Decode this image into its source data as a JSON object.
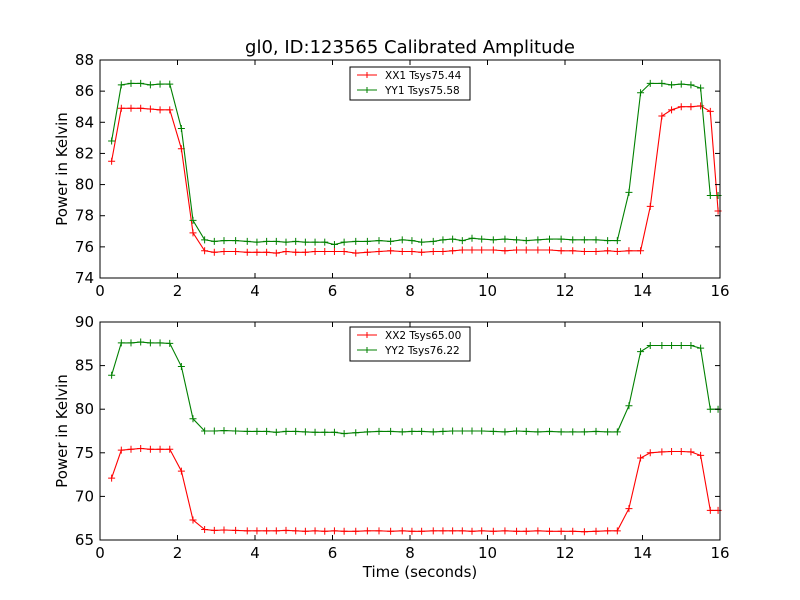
{
  "title": "gl0, ID:123565 Calibrated Amplitude",
  "chart_data": [
    {
      "type": "line",
      "ylabel": "Power in Kelvin",
      "xlabel": "",
      "xlim": [
        0,
        16
      ],
      "ylim": [
        74,
        88
      ],
      "xticks": [
        0,
        2,
        4,
        6,
        8,
        10,
        12,
        14,
        16
      ],
      "yticks": [
        74,
        76,
        78,
        80,
        82,
        84,
        86,
        88
      ],
      "xtick_labels": [
        "0",
        "2",
        "4",
        "6",
        "8",
        "10",
        "12",
        "14",
        "16"
      ],
      "ytick_labels": [
        "74",
        "76",
        "78",
        "80",
        "82",
        "84",
        "86",
        "88"
      ],
      "grid": false,
      "legend": "top-center",
      "x": [
        0.3,
        0.55,
        0.8,
        1.05,
        1.3,
        1.55,
        1.8,
        2.1,
        2.4,
        2.7,
        2.95,
        3.2,
        3.5,
        3.8,
        4.05,
        4.3,
        4.55,
        4.8,
        5.05,
        5.3,
        5.55,
        5.8,
        6.05,
        6.3,
        6.6,
        6.9,
        7.2,
        7.5,
        7.8,
        8.05,
        8.3,
        8.6,
        8.85,
        9.1,
        9.35,
        9.6,
        9.85,
        10.15,
        10.45,
        10.75,
        11.0,
        11.3,
        11.6,
        11.9,
        12.2,
        12.5,
        12.8,
        13.1,
        13.35,
        13.65,
        13.95,
        14.2,
        14.5,
        14.75,
        15.0,
        15.25,
        15.5,
        15.75,
        15.95
      ],
      "series": [
        {
          "name": "XX1 Tsys75.44",
          "color": "#ff0000",
          "values": [
            81.5,
            84.9,
            84.9,
            84.9,
            84.85,
            84.8,
            84.8,
            82.3,
            76.9,
            75.75,
            75.65,
            75.7,
            75.7,
            75.65,
            75.65,
            75.65,
            75.6,
            75.7,
            75.65,
            75.65,
            75.7,
            75.7,
            75.7,
            75.7,
            75.6,
            75.65,
            75.7,
            75.75,
            75.7,
            75.7,
            75.65,
            75.7,
            75.7,
            75.75,
            75.8,
            75.8,
            75.8,
            75.8,
            75.75,
            75.8,
            75.8,
            75.8,
            75.8,
            75.75,
            75.75,
            75.7,
            75.7,
            75.75,
            75.7,
            75.75,
            75.75,
            78.6,
            84.4,
            84.8,
            85.0,
            85.0,
            85.05,
            84.7,
            78.3
          ]
        },
        {
          "name": "YY1 Tsys75.58",
          "color": "#008000",
          "values": [
            82.8,
            86.4,
            86.5,
            86.5,
            86.4,
            86.45,
            86.45,
            83.6,
            77.7,
            76.45,
            76.35,
            76.4,
            76.4,
            76.35,
            76.3,
            76.35,
            76.35,
            76.3,
            76.35,
            76.3,
            76.3,
            76.3,
            76.15,
            76.3,
            76.35,
            76.35,
            76.4,
            76.35,
            76.45,
            76.4,
            76.3,
            76.35,
            76.45,
            76.5,
            76.4,
            76.55,
            76.5,
            76.45,
            76.5,
            76.45,
            76.4,
            76.45,
            76.5,
            76.5,
            76.45,
            76.45,
            76.45,
            76.4,
            76.4,
            79.5,
            85.9,
            86.5,
            86.5,
            86.4,
            86.45,
            86.4,
            86.2,
            79.3,
            79.3
          ]
        }
      ]
    },
    {
      "type": "line",
      "ylabel": "Power in Kelvin",
      "xlabel": "Time (seconds)",
      "xlim": [
        0,
        16
      ],
      "ylim": [
        65,
        90
      ],
      "xticks": [
        0,
        2,
        4,
        6,
        8,
        10,
        12,
        14,
        16
      ],
      "yticks": [
        65,
        70,
        75,
        80,
        85,
        90
      ],
      "xtick_labels": [
        "0",
        "2",
        "4",
        "6",
        "8",
        "10",
        "12",
        "14",
        "16"
      ],
      "ytick_labels": [
        "65",
        "70",
        "75",
        "80",
        "85",
        "90"
      ],
      "grid": false,
      "legend": "top-center",
      "x": [
        0.3,
        0.55,
        0.8,
        1.05,
        1.3,
        1.55,
        1.8,
        2.1,
        2.4,
        2.7,
        2.95,
        3.2,
        3.5,
        3.8,
        4.05,
        4.3,
        4.55,
        4.8,
        5.05,
        5.3,
        5.55,
        5.8,
        6.05,
        6.3,
        6.6,
        6.9,
        7.2,
        7.5,
        7.8,
        8.05,
        8.3,
        8.6,
        8.85,
        9.1,
        9.35,
        9.6,
        9.85,
        10.15,
        10.45,
        10.75,
        11.0,
        11.3,
        11.6,
        11.9,
        12.2,
        12.5,
        12.8,
        13.1,
        13.35,
        13.65,
        13.95,
        14.2,
        14.5,
        14.75,
        15.0,
        15.25,
        15.5,
        15.75,
        15.95
      ],
      "series": [
        {
          "name": "XX2 Tsys65.00",
          "color": "#ff0000",
          "values": [
            72.1,
            75.3,
            75.4,
            75.5,
            75.4,
            75.4,
            75.4,
            72.9,
            67.3,
            66.2,
            66.1,
            66.15,
            66.1,
            66.05,
            66.05,
            66.05,
            66.05,
            66.1,
            66.05,
            66.0,
            66.05,
            66.0,
            66.05,
            66.0,
            66.0,
            66.05,
            66.05,
            66.0,
            66.05,
            66.0,
            66.0,
            66.05,
            66.05,
            66.05,
            66.05,
            66.0,
            66.05,
            66.0,
            66.05,
            66.0,
            66.0,
            66.05,
            66.0,
            66.0,
            66.0,
            65.95,
            66.0,
            66.05,
            66.05,
            68.6,
            74.4,
            75.0,
            75.1,
            75.15,
            75.15,
            75.1,
            74.7,
            68.4,
            68.4
          ]
        },
        {
          "name": "YY2 Tsys76.22",
          "color": "#008000",
          "values": [
            83.9,
            87.6,
            87.6,
            87.7,
            87.6,
            87.6,
            87.55,
            84.9,
            78.9,
            77.5,
            77.5,
            77.55,
            77.5,
            77.45,
            77.45,
            77.45,
            77.35,
            77.45,
            77.45,
            77.4,
            77.35,
            77.35,
            77.35,
            77.2,
            77.3,
            77.4,
            77.45,
            77.45,
            77.4,
            77.45,
            77.45,
            77.4,
            77.45,
            77.5,
            77.5,
            77.5,
            77.5,
            77.45,
            77.4,
            77.5,
            77.45,
            77.4,
            77.45,
            77.4,
            77.4,
            77.4,
            77.45,
            77.4,
            77.4,
            80.4,
            86.6,
            87.3,
            87.3,
            87.3,
            87.3,
            87.3,
            87.0,
            80.0,
            80.0
          ]
        }
      ]
    }
  ]
}
